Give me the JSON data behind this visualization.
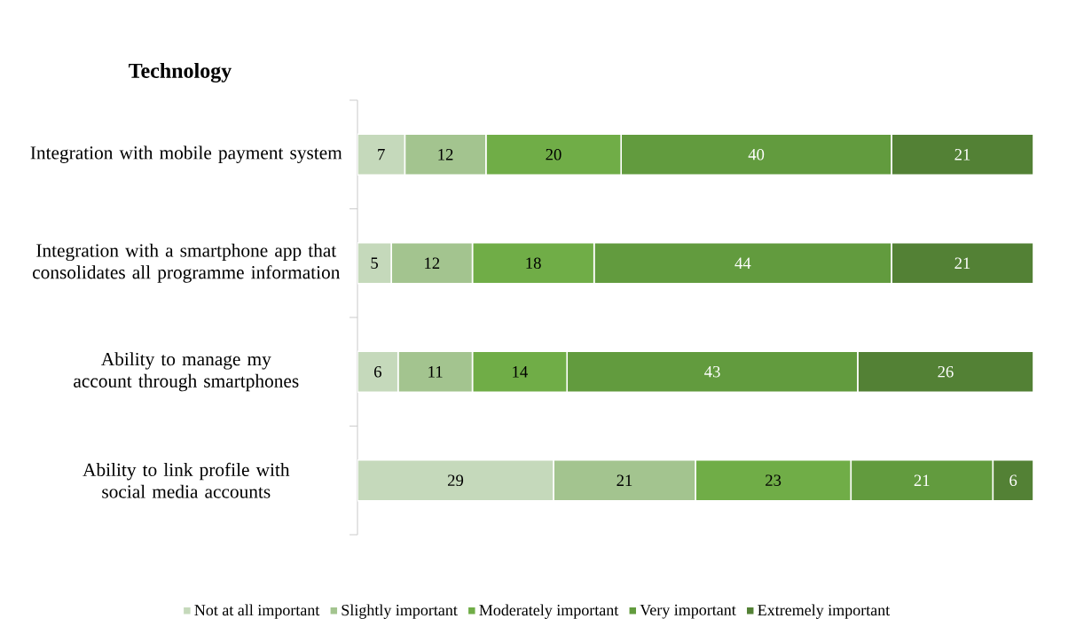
{
  "chart_data": {
    "type": "bar",
    "orientation": "horizontal",
    "stacked": true,
    "title": "Technology",
    "categories": [
      "Integration with mobile payment system",
      "Integration with a smartphone app that consolidates all programme information",
      "Ability to manage my account through smartphones",
      "Ability to link profile with social media accounts"
    ],
    "series": [
      {
        "name": "Not at all important",
        "color": "#c5d9bb",
        "values": [
          7,
          5,
          6,
          29
        ]
      },
      {
        "name": "Slightly important",
        "color": "#a3c48f",
        "values": [
          12,
          12,
          11,
          21
        ]
      },
      {
        "name": "Moderately important",
        "color": "#70ad47",
        "values": [
          20,
          18,
          14,
          23
        ]
      },
      {
        "name": "Very important",
        "color": "#629b3e",
        "values": [
          40,
          44,
          43,
          21
        ]
      },
      {
        "name": "Extremely important",
        "color": "#538135",
        "values": [
          21,
          21,
          26,
          6
        ]
      }
    ],
    "tick_labels": "y",
    "data_labels": true,
    "legend": "bottom",
    "grid": false
  }
}
